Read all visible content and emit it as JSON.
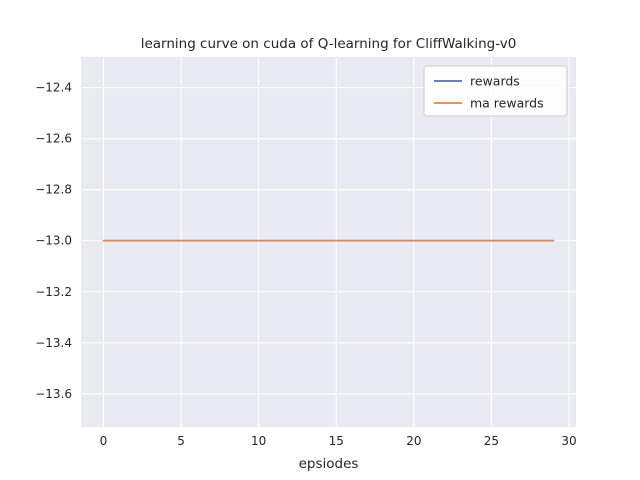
{
  "chart_data": {
    "type": "line",
    "title": "learning curve on cuda of Q-learning for CliffWalking-v0",
    "xlabel": "epsiodes",
    "ylabel": "",
    "x": [
      0,
      1,
      2,
      3,
      4,
      5,
      6,
      7,
      8,
      9,
      10,
      11,
      12,
      13,
      14,
      15,
      16,
      17,
      18,
      19,
      20,
      21,
      22,
      23,
      24,
      25,
      26,
      27,
      28,
      29
    ],
    "series": [
      {
        "name": "rewards",
        "color": "#4C72B0",
        "values": [
          -13,
          -13,
          -13,
          -13,
          -13,
          -13,
          -13,
          -13,
          -13,
          -13,
          -13,
          -13,
          -13,
          -13,
          -13,
          -13,
          -13,
          -13,
          -13,
          -13,
          -13,
          -13,
          -13,
          -13,
          -13,
          -13,
          -13,
          -13,
          -13,
          -13
        ]
      },
      {
        "name": "ma rewards",
        "color": "#DD8452",
        "values": [
          -13,
          -13,
          -13,
          -13,
          -13,
          -13,
          -13,
          -13,
          -13,
          -13,
          -13,
          -13,
          -13,
          -13,
          -13,
          -13,
          -13,
          -13,
          -13,
          -13,
          -13,
          -13,
          -13,
          -13,
          -13,
          -13,
          -13,
          -13,
          -13,
          -13
        ]
      }
    ],
    "xlim": [
      -1.45,
      30.45
    ],
    "ylim": [
      -13.73,
      -12.28
    ],
    "xticks": [
      0,
      5,
      10,
      15,
      20,
      25,
      30
    ],
    "yticks": [
      -12.4,
      -12.6,
      -12.8,
      -13.0,
      -13.2,
      -13.4,
      -13.6
    ],
    "grid": true,
    "legend_position": "upper right",
    "colors": {
      "plot_background": "#EAEAF2",
      "grid_line": "#FFFFFF",
      "text": "#262626",
      "legend_border": "#CCCCCC",
      "legend_background": "#FFFFFF"
    }
  }
}
